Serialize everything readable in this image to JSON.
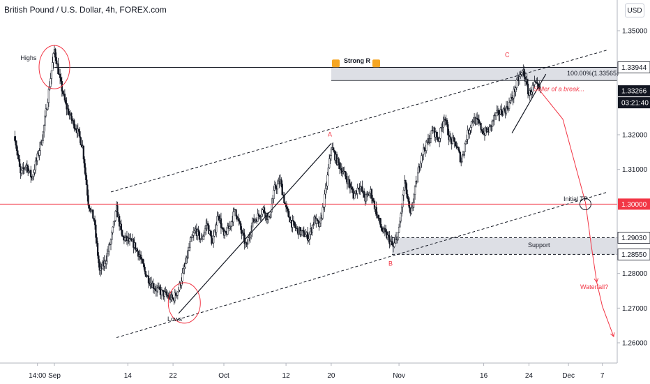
{
  "header": {
    "symbol_title": "British Pound / U.S. Dollar, 4h, FOREX.com",
    "currency": "USD"
  },
  "chart_data": {
    "type": "candlestick",
    "title": "British Pound / U.S. Dollar, 4h, FOREX.com",
    "ylim": [
      1.2588,
      1.3588
    ],
    "y_ticks": [
      {
        "value": 1.35,
        "label": "1.35000"
      },
      {
        "value": 1.32,
        "label": "1.32000"
      },
      {
        "value": 1.31,
        "label": "1.31000"
      },
      {
        "value": 1.28,
        "label": "1.28000"
      },
      {
        "value": 1.27,
        "label": "1.27000"
      },
      {
        "value": 1.26,
        "label": "1.26000"
      }
    ],
    "x_ticks": [
      {
        "day": -3,
        "label": "14:00"
      },
      {
        "day": 0,
        "label": "Sep"
      },
      {
        "day": 13,
        "label": "14"
      },
      {
        "day": 21,
        "label": "22"
      },
      {
        "day": 30,
        "label": "Oct"
      },
      {
        "day": 41,
        "label": "12"
      },
      {
        "day": 49,
        "label": "20"
      },
      {
        "day": 61,
        "label": "Nov"
      },
      {
        "day": 76,
        "label": "16"
      },
      {
        "day": 84,
        "label": "24"
      },
      {
        "day": 91,
        "label": "Dec"
      },
      {
        "day": 97,
        "label": "7"
      }
    ],
    "path_points": [
      [
        -7,
        1.3195
      ],
      [
        -6,
        1.3085
      ],
      [
        -5,
        1.3115
      ],
      [
        -4,
        1.3075
      ],
      [
        -3,
        1.3135
      ],
      [
        -2,
        1.3205
      ],
      [
        -1,
        1.3325
      ],
      [
        0,
        1.3445
      ],
      [
        1,
        1.3355
      ],
      [
        2,
        1.3285
      ],
      [
        3,
        1.3245
      ],
      [
        4,
        1.3215
      ],
      [
        5,
        1.3165
      ],
      [
        6,
        1.3005
      ],
      [
        7,
        1.2955
      ],
      [
        8,
        1.2805
      ],
      [
        9,
        1.2835
      ],
      [
        10,
        1.2895
      ],
      [
        11,
        1.2985
      ],
      [
        12,
        1.2905
      ],
      [
        13,
        1.2895
      ],
      [
        14,
        1.2885
      ],
      [
        15,
        1.2855
      ],
      [
        16,
        1.2805
      ],
      [
        17,
        1.2775
      ],
      [
        18,
        1.2755
      ],
      [
        19,
        1.2745
      ],
      [
        20,
        1.2735
      ],
      [
        21,
        1.2725
      ],
      [
        22,
        1.2755
      ],
      [
        23,
        1.2815
      ],
      [
        24,
        1.2885
      ],
      [
        25,
        1.2925
      ],
      [
        26,
        1.2895
      ],
      [
        27,
        1.2945
      ],
      [
        28,
        1.2885
      ],
      [
        29,
        1.2975
      ],
      [
        30,
        1.2905
      ],
      [
        31,
        1.2935
      ],
      [
        32,
        1.2985
      ],
      [
        33,
        1.2925
      ],
      [
        34,
        1.2875
      ],
      [
        35,
        1.2945
      ],
      [
        36,
        1.2965
      ],
      [
        37,
        1.2985
      ],
      [
        38,
        1.2955
      ],
      [
        39,
        1.3045
      ],
      [
        40,
        1.3065
      ],
      [
        41,
        1.2985
      ],
      [
        42,
        1.2945
      ],
      [
        43,
        1.2925
      ],
      [
        44,
        1.2915
      ],
      [
        45,
        1.2905
      ],
      [
        46,
        1.2955
      ],
      [
        47,
        1.2935
      ],
      [
        48,
        1.3035
      ],
      [
        49,
        1.3165
      ],
      [
        50,
        1.3125
      ],
      [
        51,
        1.3095
      ],
      [
        52,
        1.3065
      ],
      [
        53,
        1.3025
      ],
      [
        54,
        1.3055
      ],
      [
        55,
        1.3015
      ],
      [
        56,
        1.3035
      ],
      [
        57,
        1.2975
      ],
      [
        58,
        1.2925
      ],
      [
        59,
        1.2905
      ],
      [
        60,
        1.2875
      ],
      [
        61,
        1.2925
      ],
      [
        62,
        1.3065
      ],
      [
        63,
        1.2965
      ],
      [
        64,
        1.3055
      ],
      [
        65,
        1.3145
      ],
      [
        66,
        1.3175
      ],
      [
        67,
        1.3215
      ],
      [
        68,
        1.3185
      ],
      [
        69,
        1.3255
      ],
      [
        70,
        1.3185
      ],
      [
        71,
        1.3175
      ],
      [
        72,
        1.3125
      ],
      [
        73,
        1.3195
      ],
      [
        74,
        1.3245
      ],
      [
        75,
        1.3235
      ],
      [
        76,
        1.3205
      ],
      [
        77,
        1.3215
      ],
      [
        78,
        1.3255
      ],
      [
        79,
        1.3265
      ],
      [
        80,
        1.3275
      ],
      [
        81,
        1.3305
      ],
      [
        82,
        1.3355
      ],
      [
        83,
        1.3385
      ],
      [
        84,
        1.3315
      ],
      [
        85,
        1.3345
      ],
      [
        86,
        1.3326
      ]
    ],
    "price_labels": [
      {
        "price": 1.33944,
        "label": "1.33944",
        "kind": "level"
      },
      {
        "price": 1.33266,
        "label": "1.33266",
        "kind": "last"
      },
      {
        "price": 1.33266,
        "label": "03:21:40",
        "kind": "timer"
      },
      {
        "price": 1.3,
        "label": "1.30000",
        "kind": "red"
      },
      {
        "price": 1.2903,
        "label": "1.29030",
        "kind": "level"
      },
      {
        "price": 1.2855,
        "label": "1.28550",
        "kind": "level"
      }
    ],
    "annotations": {
      "highs": "Highs",
      "lows": "Lows",
      "strong_r": "Strong R",
      "fib": "100.00%(1.33565)",
      "seller": "Seller of a break...",
      "initial_tp": "Initial TP",
      "support": "Support",
      "waterfall": "Waterfall?",
      "point_a": "A",
      "point_b": "B",
      "point_c": "C"
    },
    "drawings": {
      "strong_r_zone": [
        1.33944,
        1.33565
      ],
      "support_zone": [
        1.2903,
        1.2855
      ],
      "horizontal_red": 1.3,
      "upper_channel": [
        [
          10,
          1.3035
        ],
        [
          98,
          1.3445
        ]
      ],
      "lower_channel": [
        [
          11,
          1.2615
        ],
        [
          98,
          1.3035
        ]
      ],
      "trend_ab": [
        [
          22,
          1.2685
        ],
        [
          49,
          1.3175
        ]
      ],
      "trend_c": [
        [
          81,
          1.3205
        ],
        [
          87,
          1.3375
        ]
      ],
      "highs_line_start": [
        0,
        1.33944
      ],
      "projection": [
        [
          86,
          1.3326
        ],
        [
          90,
          1.3245
        ],
        [
          94,
          1.3005
        ],
        [
          95,
          1.2885
        ],
        [
          96,
          1.2775
        ],
        [
          97,
          1.2705
        ],
        [
          99,
          1.2618
        ]
      ],
      "fail_marker": [
        94,
        1.3
      ]
    },
    "colors": {
      "up": "#131722",
      "down": "#131722",
      "red": "#f23645",
      "zone": "#d1d4dc",
      "axis_text": "#131722",
      "grid": "#ffffff"
    }
  }
}
